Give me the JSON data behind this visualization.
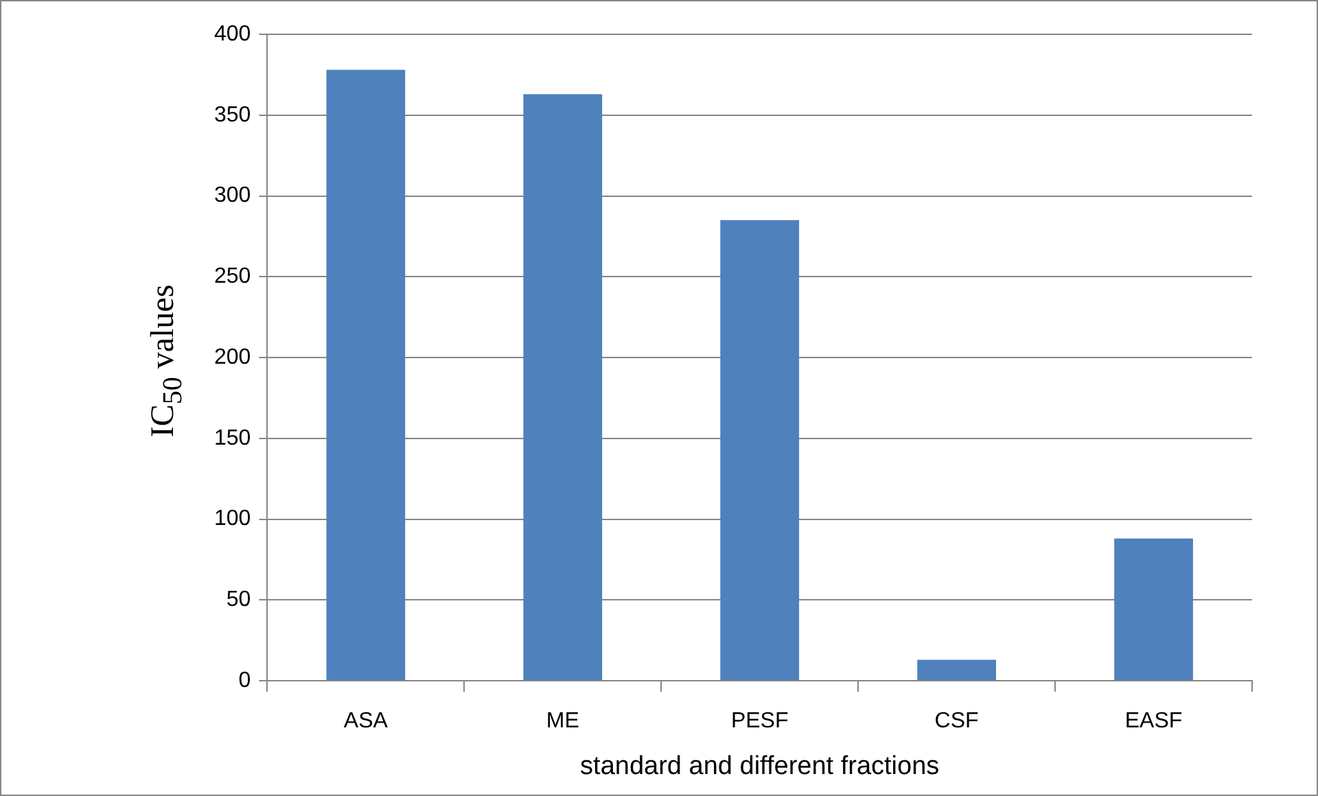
{
  "chart_data": {
    "type": "bar",
    "categories": [
      "ASA",
      "ME",
      "PESF",
      "CSF",
      "EASF"
    ],
    "values": [
      378,
      363,
      285,
      13,
      88
    ],
    "color": "#4f81bd",
    "xlabel": "standard and different fractions",
    "ylabel": "IC$_{50}$ values",
    "ylim": [
      0,
      400
    ],
    "yticks": [
      0,
      50,
      100,
      150,
      200,
      250,
      300,
      350,
      400
    ],
    "grid": "y",
    "legend": false
  }
}
